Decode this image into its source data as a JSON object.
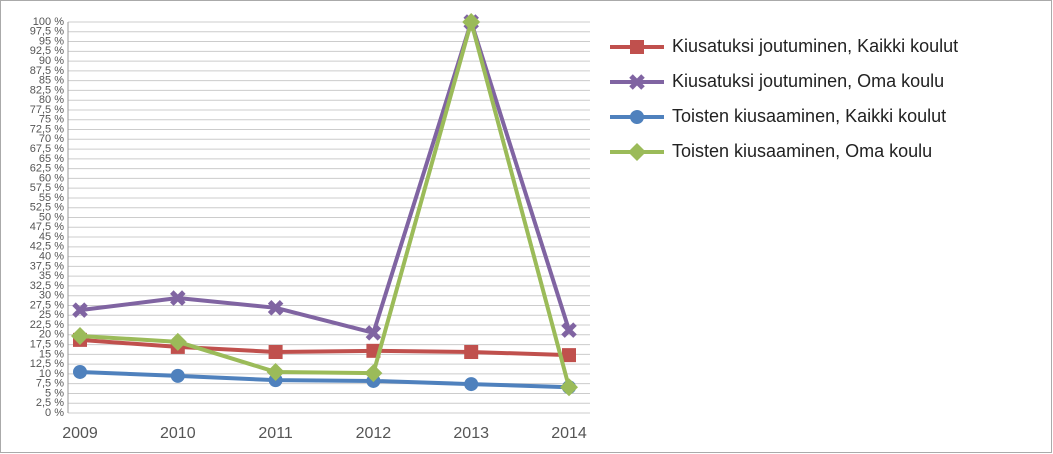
{
  "chart_data": {
    "type": "line",
    "categories": [
      "2009",
      "2010",
      "2011",
      "2012",
      "2013",
      "2014"
    ],
    "series": [
      {
        "name": "Kiusatuksi joutuminen, Kaikki koulut",
        "color": "#c0504d",
        "marker": "square",
        "values": [
          18.7,
          16.9,
          15.6,
          15.9,
          15.6,
          14.8
        ]
      },
      {
        "name": "Kiusatuksi joutuminen, Oma koulu",
        "color": "#8064a2",
        "marker": "x",
        "values": [
          26.3,
          29.4,
          26.9,
          20.5,
          100,
          21.2
        ]
      },
      {
        "name": "Toisten kiusaaminen, Kaikki koulut",
        "color": "#4f81bd",
        "marker": "circle",
        "values": [
          10.5,
          9.5,
          8.4,
          8.2,
          7.4,
          6.6
        ]
      },
      {
        "name": "Toisten kiusaaminen, Oma koulu",
        "color": "#9bbb59",
        "marker": "diamond",
        "values": [
          19.7,
          18.2,
          10.5,
          10.2,
          100,
          6.6
        ]
      }
    ],
    "ylim": [
      0,
      100
    ],
    "yticks": [
      {
        "value": 0,
        "label": "0 %"
      },
      {
        "value": 2.5,
        "label": "2,5 %"
      },
      {
        "value": 5,
        "label": "5 %"
      },
      {
        "value": 7.5,
        "label": "7,5 %"
      },
      {
        "value": 10,
        "label": "10 %"
      },
      {
        "value": 12.5,
        "label": "12,5 %"
      },
      {
        "value": 15,
        "label": "15 %"
      },
      {
        "value": 17.5,
        "label": "17,5 %"
      },
      {
        "value": 20,
        "label": "20 %"
      },
      {
        "value": 22.5,
        "label": "22,5 %"
      },
      {
        "value": 25,
        "label": "25 %"
      },
      {
        "value": 27.5,
        "label": "27,5 %"
      },
      {
        "value": 30,
        "label": "30 %"
      },
      {
        "value": 32.5,
        "label": "32,5 %"
      },
      {
        "value": 35,
        "label": "35 %"
      },
      {
        "value": 37.5,
        "label": "37,5 %"
      },
      {
        "value": 40,
        "label": "40 %"
      },
      {
        "value": 42.5,
        "label": "42,5 %"
      },
      {
        "value": 45,
        "label": "45 %"
      },
      {
        "value": 47.5,
        "label": "47,5 %"
      },
      {
        "value": 50,
        "label": "50 %"
      },
      {
        "value": 52.5,
        "label": "52,5 %"
      },
      {
        "value": 55,
        "label": "55 %"
      },
      {
        "value": 57.5,
        "label": "57,5 %"
      },
      {
        "value": 60,
        "label": "60 %"
      },
      {
        "value": 62.5,
        "label": "62,5 %"
      },
      {
        "value": 65,
        "label": "65 %"
      },
      {
        "value": 67.5,
        "label": "67,5 %"
      },
      {
        "value": 70,
        "label": "70 %"
      },
      {
        "value": 72.5,
        "label": "72,5 %"
      },
      {
        "value": 75,
        "label": "75 %"
      },
      {
        "value": 77.5,
        "label": "77,5 %"
      },
      {
        "value": 80,
        "label": "80 %"
      },
      {
        "value": 82.5,
        "label": "82,5 %"
      },
      {
        "value": 85,
        "label": "85 %"
      },
      {
        "value": 87.5,
        "label": "87,5 %"
      },
      {
        "value": 90,
        "label": "90 %"
      },
      {
        "value": 92.5,
        "label": "92,5 %"
      },
      {
        "value": 95,
        "label": "95 %"
      },
      {
        "value": 97.5,
        "label": "97,5 %"
      },
      {
        "value": 100,
        "label": "100 %"
      }
    ],
    "grid": true
  }
}
